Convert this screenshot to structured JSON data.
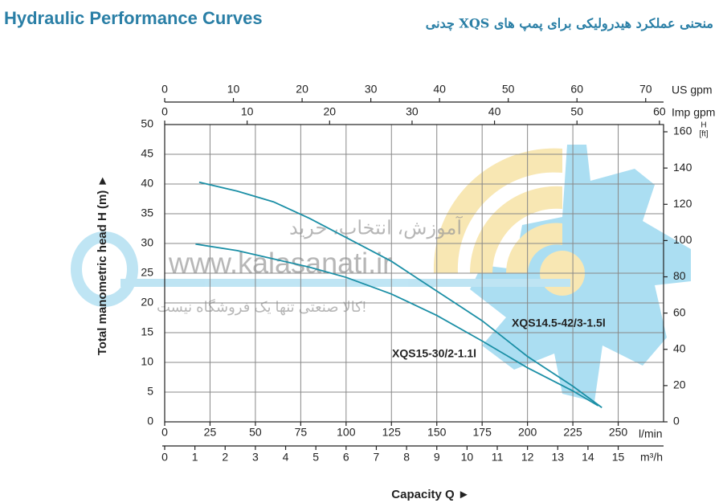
{
  "chart_data": {
    "type": "line",
    "title": "Hydraulic Performance Curves",
    "subtitle": "منحنی عملکرد هیدرولیکی برای پمپ های XQS چدنی",
    "xlabel": "Capacity Q  ►",
    "xunit": "l/min",
    "ylabel": "Total manometric head H (m)  ►",
    "xlim": [
      0,
      275
    ],
    "xticks": [
      0,
      25,
      50,
      75,
      100,
      125,
      150,
      175,
      200,
      225,
      250
    ],
    "ylim": [
      0,
      50
    ],
    "yticks": [
      0,
      5,
      10,
      15,
      20,
      25,
      30,
      35,
      40,
      45,
      50
    ],
    "y2label": "H",
    "y2unit": "[ft]",
    "y2lim": [
      0,
      164
    ],
    "y2ticks": [
      0,
      20,
      40,
      60,
      80,
      100,
      120,
      140,
      160
    ],
    "top_axes": [
      {
        "label": "US gpm",
        "lim": [
          0,
          72.6
        ],
        "ticks": [
          0,
          10,
          20,
          30,
          40,
          50,
          60,
          70
        ]
      },
      {
        "label": "Imp gpm",
        "lim": [
          0,
          60.5
        ],
        "ticks": [
          0,
          10,
          20,
          30,
          40,
          50,
          60
        ]
      }
    ],
    "bottom_axis2": {
      "label": "m³/h",
      "lim": [
        0,
        16.5
      ],
      "ticks": [
        0,
        1,
        2,
        3,
        4,
        5,
        6,
        7,
        8,
        9,
        10,
        11,
        12,
        13,
        14,
        15
      ]
    },
    "grid": true,
    "series": [
      {
        "name": "XQS14.5-42/3-1.5l",
        "color": "#1b8fa6",
        "x": [
          19,
          40,
          60,
          80,
          100,
          125,
          150,
          175,
          200,
          225,
          241
        ],
        "values": [
          40.3,
          38.8,
          37.0,
          34.2,
          31.0,
          27.0,
          22.0,
          17.0,
          11.0,
          6.0,
          2.4
        ]
      },
      {
        "name": "XQS15-30/2-1.1l",
        "color": "#1b8fa6",
        "x": [
          17,
          40,
          60,
          80,
          100,
          125,
          150,
          175,
          200,
          225,
          239
        ],
        "values": [
          29.9,
          28.8,
          27.4,
          26.0,
          24.3,
          21.5,
          17.9,
          13.6,
          9.1,
          5.2,
          2.7
        ]
      }
    ],
    "watermark": [
      "آموزش، انتخاب، خرید",
      "www.kalasanati.ir",
      "کالا صنعتی تنها یک فروشگاه نیست!"
    ]
  }
}
